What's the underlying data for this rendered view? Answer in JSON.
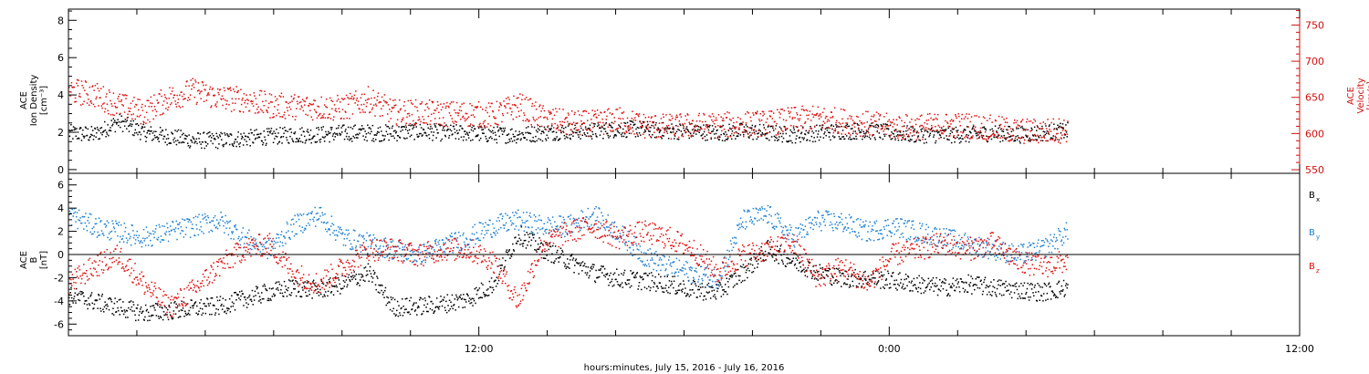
{
  "chart_data": [
    {
      "type": "scatter",
      "panel": "top",
      "left_axis": {
        "label_lines": [
          "ACE",
          "Ion Density",
          "[cm⁻³]"
        ],
        "ylim": [
          -0.2,
          8.6
        ],
        "ticks": [
          "0",
          "2",
          "4",
          "6",
          "8"
        ],
        "tick_values": [
          0,
          2,
          4,
          6,
          8
        ],
        "color": "#000000"
      },
      "right_axis": {
        "label_lines": [
          "ACE",
          "Velocity",
          "[km/s]"
        ],
        "ylim": [
          545,
          772
        ],
        "ticks": [
          "550",
          "600",
          "650",
          "700",
          "750"
        ],
        "tick_values": [
          550,
          600,
          650,
          700,
          750
        ],
        "color": "#d01010"
      },
      "series": [
        {
          "color": "#000000",
          "axis": "left",
          "keypoints": {
            "x": [
              0,
              1,
              2,
              3,
              4,
              5,
              6,
              7,
              8,
              9,
              10,
              11,
              12,
              13,
              14,
              15,
              16,
              17,
              18,
              19,
              20,
              21,
              22,
              23,
              24,
              25,
              26,
              27,
              28,
              29,
              30,
              31,
              32,
              33,
              34,
              35,
              36,
              37,
              38,
              39,
              40
            ],
            "y": [
              2.0,
              1.9,
              2.6,
              2.0,
              1.8,
              1.6,
              1.6,
              1.7,
              1.8,
              1.9,
              1.9,
              2.0,
              2.0,
              2.0,
              2.1,
              2.0,
              2.0,
              1.9,
              1.9,
              2.0,
              2.1,
              2.1,
              2.2,
              2.2,
              2.1,
              2.1,
              2.0,
              2.1,
              2.0,
              1.9,
              2.0,
              2.1,
              2.1,
              2.0,
              1.9,
              1.9,
              1.9,
              2.0,
              1.9,
              2.0,
              2.1
            ]
          },
          "spread": 0.45
        },
        {
          "color": "#e01010",
          "axis": "right",
          "keypoints": {
            "x": [
              0,
              1,
              2,
              3,
              4,
              5,
              6,
              7,
              8,
              9,
              10,
              11,
              12,
              13,
              14,
              15,
              16,
              17,
              18,
              19,
              20,
              21,
              22,
              23,
              24,
              25,
              26,
              27,
              28,
              29,
              30,
              31,
              32,
              33,
              34,
              35,
              36,
              37,
              38,
              39,
              40
            ],
            "y": [
              660,
              655,
              640,
              630,
              650,
              660,
              650,
              648,
              640,
              638,
              637,
              636,
              648,
              630,
              630,
              628,
              628,
              626,
              640,
              622,
              615,
              615,
              620,
              612,
              610,
              612,
              612,
              614,
              615,
              620,
              622,
              618,
              614,
              610,
              610,
              612,
              612,
              608,
              604,
              604,
              606
            ]
          },
          "spread": 18
        }
      ]
    },
    {
      "type": "scatter",
      "panel": "bottom",
      "left_axis": {
        "label_lines": [
          "ACE",
          "B",
          "[nT]"
        ],
        "ylim": [
          -7.0,
          7.0
        ],
        "ticks": [
          "-6",
          "-4",
          "-2",
          "0",
          "2",
          "4",
          "6"
        ],
        "tick_values": [
          -6,
          -4,
          -2,
          0,
          2,
          4,
          6
        ],
        "color": "#000000"
      },
      "zero_line": 0,
      "legend": {
        "position": "right",
        "items": [
          {
            "label": "B",
            "sub": "x",
            "color": "#000000"
          },
          {
            "label": "B",
            "sub": "y",
            "color": "#2080d0"
          },
          {
            "label": "B",
            "sub": "z",
            "color": "#e01010"
          }
        ]
      },
      "series": [
        {
          "name": "Bx",
          "color": "#000000",
          "keypoints": {
            "x": [
              0,
              1,
              2,
              3,
              4,
              5,
              6,
              7,
              8,
              9,
              10,
              11,
              12,
              13,
              14,
              15,
              16,
              17,
              18,
              19,
              20,
              21,
              22,
              23,
              24,
              25,
              26,
              27,
              28,
              29,
              30,
              31,
              32,
              33,
              34,
              35,
              36,
              37,
              38,
              39,
              40
            ],
            "y": [
              -3.5,
              -4.0,
              -4.5,
              -5.0,
              -4.8,
              -4.6,
              -4.4,
              -3.8,
              -3.2,
              -2.8,
              -3.0,
              -2.5,
              -1.5,
              -4.5,
              -4.4,
              -4.2,
              -3.8,
              -2.5,
              1.8,
              0.5,
              -0.5,
              -1.5,
              -2.0,
              -2.2,
              -2.5,
              -3.0,
              -3.2,
              -1.5,
              0.5,
              -0.5,
              -1.5,
              -2.0,
              -2.0,
              -2.2,
              -2.5,
              -2.8,
              -2.5,
              -2.8,
              -3.0,
              -3.2,
              -2.8
            ]
          },
          "spread": 0.8
        },
        {
          "name": "By",
          "color": "#2080d0",
          "keypoints": {
            "x": [
              0,
              1,
              2,
              3,
              4,
              5,
              6,
              7,
              8,
              9,
              10,
              11,
              12,
              13,
              14,
              15,
              16,
              17,
              18,
              19,
              20,
              21,
              22,
              23,
              24,
              25,
              26,
              27,
              28,
              29,
              30,
              31,
              32,
              33,
              34,
              35,
              36,
              37,
              38,
              39,
              40
            ],
            "y": [
              3.5,
              2.5,
              2.0,
              1.5,
              2.0,
              2.5,
              3.0,
              1.5,
              0.5,
              2.5,
              3.5,
              1.5,
              1.0,
              0.5,
              0.0,
              0.8,
              1.5,
              2.5,
              3.0,
              2.5,
              2.5,
              3.5,
              2.0,
              0.0,
              -1.0,
              -1.5,
              -2.0,
              3.0,
              3.5,
              1.5,
              3.0,
              2.8,
              2.0,
              2.5,
              2.0,
              1.5,
              1.0,
              0.5,
              0.0,
              0.5,
              2.0
            ]
          },
          "spread": 0.9
        },
        {
          "name": "Bz",
          "color": "#e01010",
          "keypoints": {
            "x": [
              0,
              1,
              2,
              3,
              4,
              5,
              6,
              7,
              8,
              9,
              10,
              11,
              12,
              13,
              14,
              15,
              16,
              17,
              18,
              19,
              20,
              21,
              22,
              23,
              24,
              25,
              26,
              27,
              28,
              29,
              30,
              31,
              32,
              33,
              34,
              35,
              36,
              37,
              38,
              39,
              40
            ],
            "y": [
              -2.5,
              -1.0,
              0.0,
              -2.5,
              -4.5,
              -3.0,
              -1.0,
              0.5,
              1.0,
              -1.5,
              -2.5,
              -1.0,
              0.5,
              0.5,
              0.0,
              0.5,
              0.5,
              -0.5,
              -4.0,
              1.0,
              2.0,
              2.5,
              1.5,
              2.0,
              1.5,
              0.5,
              -1.5,
              0.0,
              0.5,
              1.0,
              -2.0,
              -1.0,
              -2.5,
              0.0,
              0.5,
              1.0,
              0.5,
              1.0,
              -0.5,
              -1.0,
              -0.5
            ]
          },
          "spread": 1.0
        }
      ]
    }
  ],
  "x_axis": {
    "label": "hours:minutes, July 15, 2016 - July 16, 2016",
    "ticks": [
      "12:00",
      "0:00",
      "12:00"
    ],
    "tick_hours": [
      12,
      24,
      36
    ],
    "range_hours": [
      0,
      36
    ],
    "minor_tick_step_hours": 2,
    "data_end_hours": 29.2
  }
}
